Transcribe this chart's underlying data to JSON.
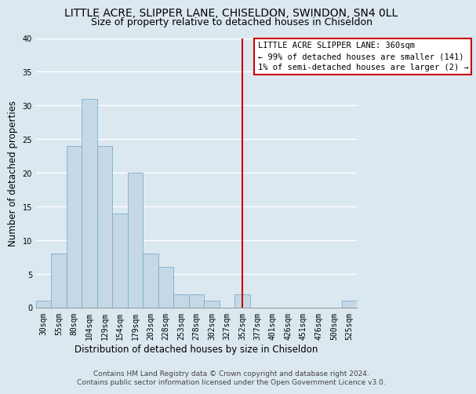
{
  "title": "LITTLE ACRE, SLIPPER LANE, CHISELDON, SWINDON, SN4 0LL",
  "subtitle": "Size of property relative to detached houses in Chiseldon",
  "xlabel": "Distribution of detached houses by size in Chiseldon",
  "ylabel": "Number of detached properties",
  "bar_labels": [
    "30sqm",
    "55sqm",
    "80sqm",
    "104sqm",
    "129sqm",
    "154sqm",
    "179sqm",
    "203sqm",
    "228sqm",
    "253sqm",
    "278sqm",
    "302sqm",
    "327sqm",
    "352sqm",
    "377sqm",
    "401sqm",
    "426sqm",
    "451sqm",
    "476sqm",
    "500sqm",
    "525sqm"
  ],
  "bar_heights": [
    1,
    8,
    24,
    31,
    24,
    14,
    20,
    8,
    6,
    2,
    2,
    1,
    0,
    2,
    0,
    0,
    0,
    0,
    0,
    0,
    1
  ],
  "bar_color": "#c5d8e8",
  "bar_edge_color": "#7aafc8",
  "ylim": [
    0,
    40
  ],
  "yticks": [
    0,
    5,
    10,
    15,
    20,
    25,
    30,
    35,
    40
  ],
  "vline_color": "#cc0000",
  "annotation_title": "LITTLE ACRE SLIPPER LANE: 360sqm",
  "annotation_line1": "← 99% of detached houses are smaller (141)",
  "annotation_line2": "1% of semi-detached houses are larger (2) →",
  "footer1": "Contains HM Land Registry data © Crown copyright and database right 2024.",
  "footer2": "Contains public sector information licensed under the Open Government Licence v3.0.",
  "background_color": "#dce8f0",
  "grid_color": "#ffffff",
  "title_fontsize": 10,
  "subtitle_fontsize": 9,
  "axis_label_fontsize": 8.5,
  "tick_fontsize": 7,
  "footer_fontsize": 6.5,
  "annot_fontsize": 7.5
}
